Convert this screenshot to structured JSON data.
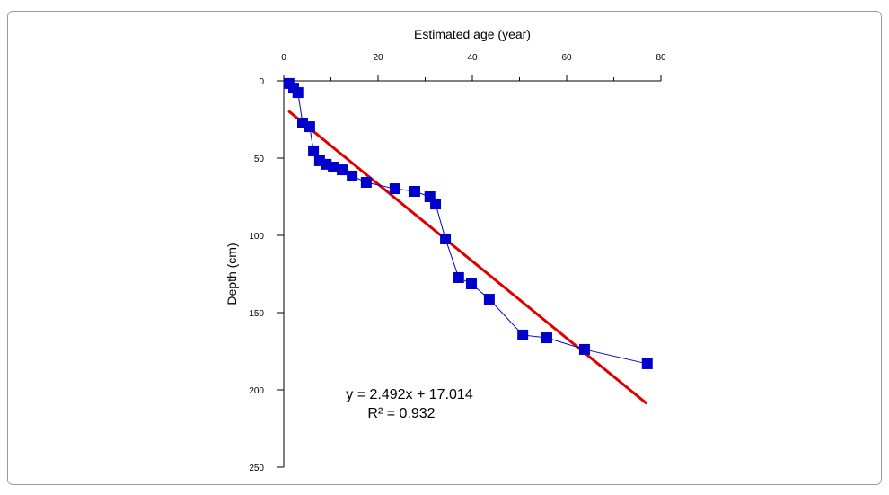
{
  "chart_data": {
    "type": "scatter",
    "x_label": "Estimated age (year)",
    "y_label": "Depth (cm)",
    "xlim": [
      0,
      80
    ],
    "xticks": [
      0,
      20,
      40,
      60,
      80
    ],
    "xminorticks": [
      10,
      30,
      50,
      70
    ],
    "ylim": [
      0,
      250
    ],
    "yticks": [
      0,
      50,
      100,
      150,
      200,
      250
    ],
    "y_inverted": true,
    "series": [
      {
        "color": "#0000cc",
        "x": [
          1.1,
          2.1,
          3.0,
          4.0,
          5.5,
          6.3,
          7.6,
          9.0,
          10.5,
          12.4,
          14.5,
          17.5,
          23.6,
          27.8,
          31.0,
          32.2,
          34.3,
          37.1,
          39.8,
          43.6,
          50.7,
          55.8,
          63.8,
          77.1
        ],
        "values": [
          1.7,
          4.7,
          7.6,
          27.3,
          29.7,
          45.3,
          51.7,
          54,
          55.8,
          57.6,
          61.6,
          65.7,
          69.8,
          71.5,
          75,
          79.7,
          102.3,
          127.3,
          131.4,
          141.3,
          164.5,
          166.3,
          173.8,
          183.1
        ]
      }
    ],
    "fit": {
      "color": "#dd0000",
      "slope": 2.492,
      "intercept": 17.014,
      "x_start": 1,
      "x_end": 77,
      "equation": "y = 2.492x + 17.014",
      "r2_label": "R² = 0.932"
    }
  }
}
